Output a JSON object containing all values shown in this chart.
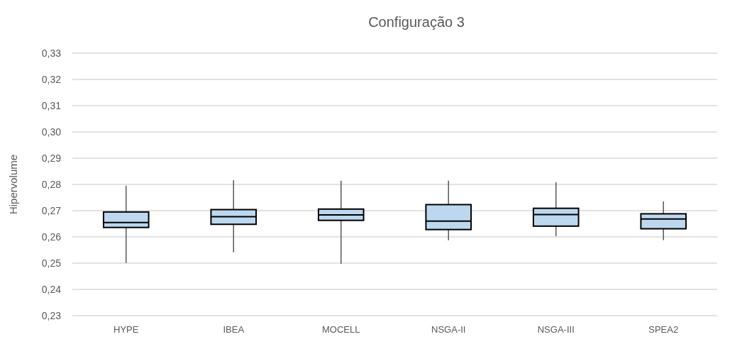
{
  "chart_data": {
    "type": "box",
    "title": "Configuração 3",
    "ylabel": "Hipervolume",
    "categories": [
      "HYPE",
      "IBEA",
      "MOCELL",
      "NSGA-II",
      "NSGA-III",
      "SPEA2"
    ],
    "boxes": [
      {
        "low": 0.2501,
        "q1": 0.2636,
        "median": 0.2655,
        "q3": 0.2695,
        "high": 0.2795
      },
      {
        "low": 0.2541,
        "q1": 0.2648,
        "median": 0.2677,
        "q3": 0.2704,
        "high": 0.2816
      },
      {
        "low": 0.2497,
        "q1": 0.2663,
        "median": 0.2684,
        "q3": 0.2706,
        "high": 0.2814
      },
      {
        "low": 0.2587,
        "q1": 0.2628,
        "median": 0.266,
        "q3": 0.2723,
        "high": 0.2814
      },
      {
        "low": 0.2603,
        "q1": 0.2641,
        "median": 0.2685,
        "q3": 0.2709,
        "high": 0.2808
      },
      {
        "low": 0.2588,
        "q1": 0.2631,
        "median": 0.2668,
        "q3": 0.2688,
        "high": 0.2735
      }
    ],
    "color": "#bdd7ee",
    "ylim": [
      0.23,
      0.33
    ],
    "yticks": [
      {
        "value": 0.23,
        "label": "0,23"
      },
      {
        "value": 0.24,
        "label": "0,24"
      },
      {
        "value": 0.25,
        "label": "0,25"
      },
      {
        "value": 0.26,
        "label": "0,26"
      },
      {
        "value": 0.27,
        "label": "0,27"
      },
      {
        "value": 0.28,
        "label": "0,28"
      },
      {
        "value": 0.29,
        "label": "0,29"
      },
      {
        "value": 0.3,
        "label": "0,30"
      },
      {
        "value": 0.31,
        "label": "0,31"
      },
      {
        "value": 0.32,
        "label": "0,32"
      },
      {
        "value": 0.33,
        "label": "0,33"
      }
    ],
    "grid": "y"
  }
}
